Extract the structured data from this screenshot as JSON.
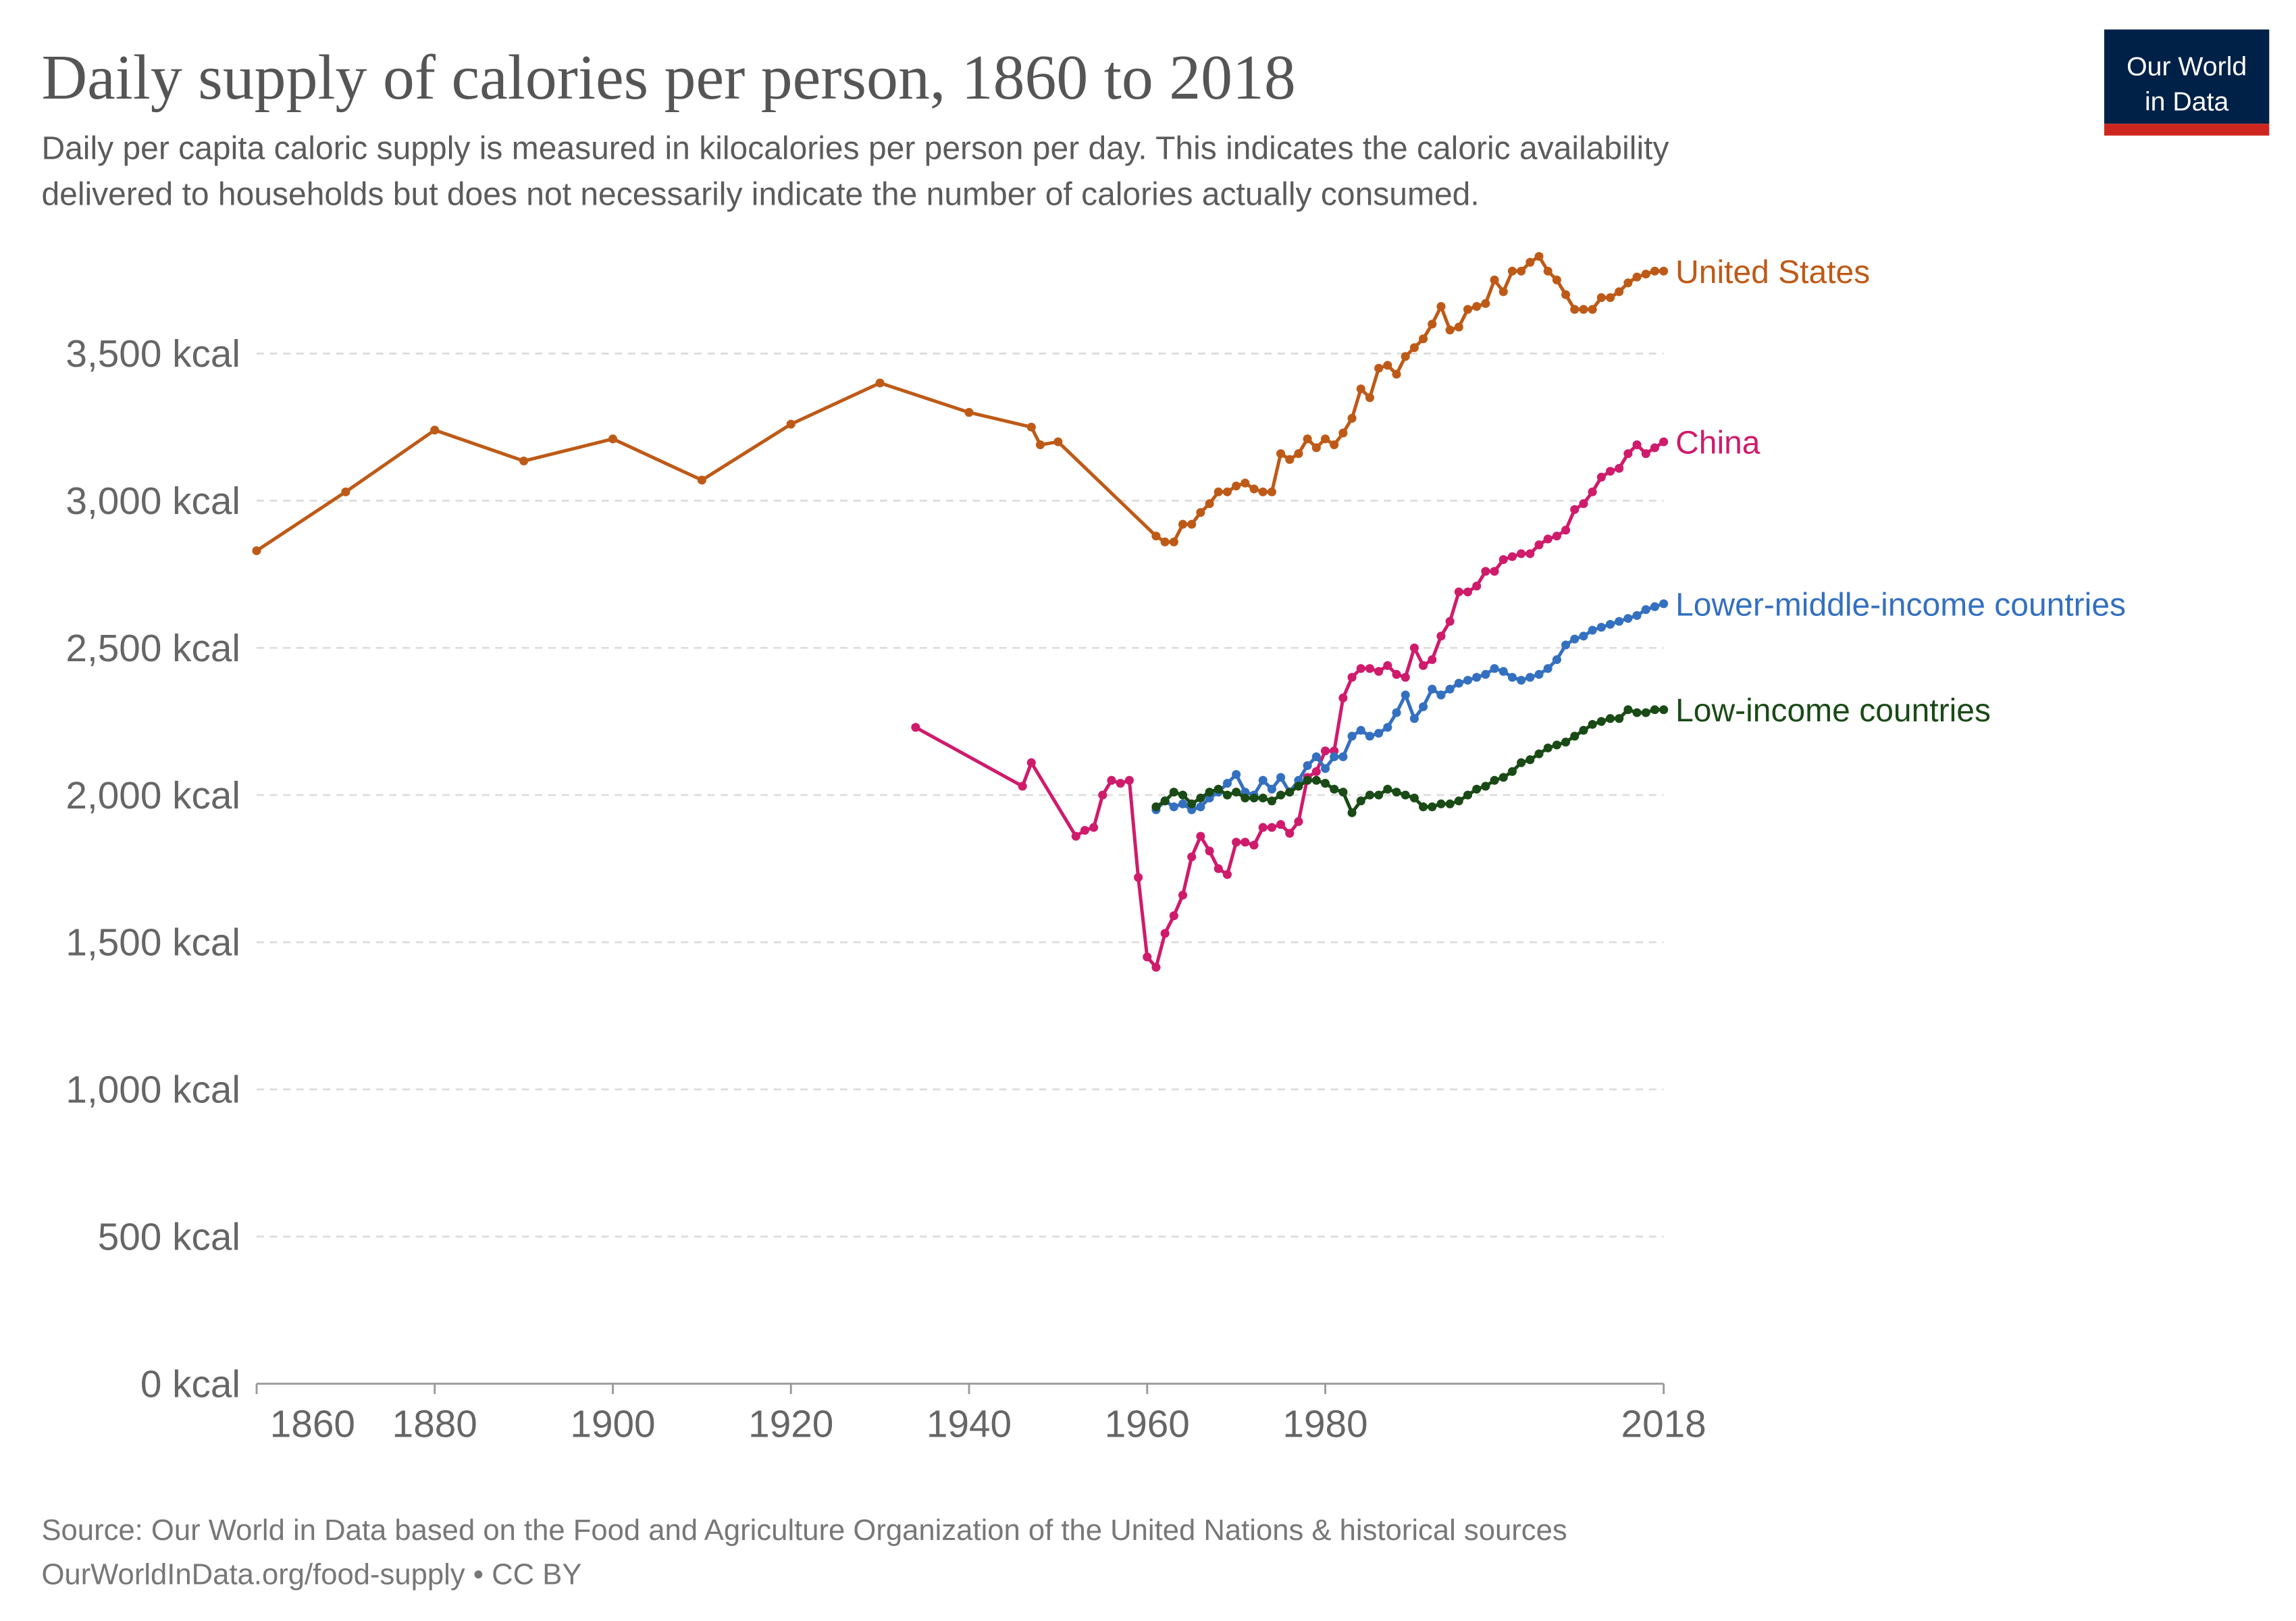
{
  "logo": [
    "Our World",
    "in Data"
  ],
  "chart_data": {
    "type": "line",
    "title": "Daily supply of calories per person, 1860 to 2018",
    "subtitle": [
      "Daily per capita caloric supply is measured in kilocalories per person per day. This indicates the caloric availability",
      "delivered to households but does not necessarily indicate the number of calories actually consumed."
    ],
    "source": "Source: Our World in Data based on the Food and Agriculture Organization of the United Nations & historical sources",
    "url": "OurWorldInData.org/food-supply • CC BY",
    "xlim": [
      1860,
      2018
    ],
    "xticks": [
      1860,
      1880,
      1900,
      1920,
      1940,
      1960,
      1980,
      2018
    ],
    "ylim": [
      0,
      3850
    ],
    "yticks": [
      {
        "value": 0,
        "label": "0 kcal"
      },
      {
        "value": 500,
        "label": "500 kcal"
      },
      {
        "value": 1000,
        "label": "1,000 kcal"
      },
      {
        "value": 1500,
        "label": "1,500 kcal"
      },
      {
        "value": 2000,
        "label": "2,000 kcal"
      },
      {
        "value": 2500,
        "label": "2,500 kcal"
      },
      {
        "value": 3000,
        "label": "3,000 kcal"
      },
      {
        "value": 3500,
        "label": "3,500 kcal"
      }
    ],
    "grid": true,
    "series": [
      {
        "name": "United States",
        "color": "#be5a17",
        "x": [
          1860,
          1870,
          1880,
          1890,
          1900,
          1910,
          1920,
          1930,
          1940,
          1947,
          1948,
          1950,
          1961,
          1962,
          1963,
          1964,
          1965,
          1966,
          1967,
          1968,
          1969,
          1970,
          1971,
          1972,
          1973,
          1974,
          1975,
          1976,
          1977,
          1978,
          1979,
          1980,
          1981,
          1982,
          1983,
          1984,
          1985,
          1986,
          1987,
          1988,
          1989,
          1990,
          1991,
          1992,
          1993,
          1994,
          1995,
          1996,
          1997,
          1998,
          1999,
          2000,
          2001,
          2002,
          2003,
          2004,
          2005,
          2006,
          2007,
          2008,
          2009,
          2010,
          2011,
          2012,
          2013,
          2014,
          2015,
          2016,
          2017,
          2018
        ],
        "values": [
          2830,
          3030,
          3240,
          3135,
          3210,
          3070,
          3260,
          3400,
          3300,
          3250,
          3190,
          3200,
          2880,
          2860,
          2860,
          2920,
          2920,
          2960,
          2990,
          3030,
          3030,
          3050,
          3060,
          3040,
          3030,
          3030,
          3160,
          3140,
          3160,
          3210,
          3180,
          3210,
          3190,
          3230,
          3280,
          3380,
          3350,
          3450,
          3460,
          3430,
          3490,
          3520,
          3550,
          3600,
          3660,
          3580,
          3590,
          3650,
          3660,
          3670,
          3750,
          3710,
          3780,
          3780,
          3810,
          3830,
          3780,
          3750,
          3700,
          3650,
          3650,
          3650,
          3690,
          3690,
          3710,
          3740,
          3760,
          3770,
          3780,
          3780
        ]
      },
      {
        "name": "China",
        "color": "#cf1b6c",
        "x": [
          1934,
          1946,
          1947,
          1952,
          1953,
          1954,
          1955,
          1956,
          1957,
          1958,
          1959,
          1960,
          1961,
          1962,
          1963,
          1964,
          1965,
          1966,
          1967,
          1968,
          1969,
          1970,
          1971,
          1972,
          1973,
          1974,
          1975,
          1976,
          1977,
          1978,
          1979,
          1980,
          1981,
          1982,
          1983,
          1984,
          1985,
          1986,
          1987,
          1988,
          1989,
          1990,
          1991,
          1992,
          1993,
          1994,
          1995,
          1996,
          1997,
          1998,
          1999,
          2000,
          2001,
          2002,
          2003,
          2004,
          2005,
          2006,
          2007,
          2008,
          2009,
          2010,
          2011,
          2012,
          2013,
          2014,
          2015,
          2016,
          2017,
          2018
        ],
        "values": [
          2230,
          2030,
          2110,
          1860,
          1880,
          1890,
          2000,
          2050,
          2040,
          2050,
          1720,
          1450,
          1415,
          1530,
          1590,
          1660,
          1790,
          1860,
          1810,
          1750,
          1730,
          1840,
          1840,
          1830,
          1890,
          1890,
          1900,
          1870,
          1910,
          2060,
          2080,
          2150,
          2150,
          2330,
          2400,
          2430,
          2430,
          2420,
          2440,
          2410,
          2400,
          2500,
          2440,
          2460,
          2540,
          2590,
          2690,
          2690,
          2710,
          2760,
          2760,
          2800,
          2810,
          2820,
          2820,
          2850,
          2870,
          2880,
          2900,
          2970,
          2990,
          3030,
          3080,
          3100,
          3110,
          3160,
          3190,
          3160,
          3180,
          3200
        ]
      },
      {
        "name": "Lower-middle-income countries",
        "color": "#3470c0",
        "x": [
          1961,
          1962,
          1963,
          1964,
          1965,
          1966,
          1967,
          1968,
          1969,
          1970,
          1971,
          1972,
          1973,
          1974,
          1975,
          1976,
          1977,
          1978,
          1979,
          1980,
          1981,
          1982,
          1983,
          1984,
          1985,
          1986,
          1987,
          1988,
          1989,
          1990,
          1991,
          1992,
          1993,
          1994,
          1995,
          1996,
          1997,
          1998,
          1999,
          2000,
          2001,
          2002,
          2003,
          2004,
          2005,
          2006,
          2007,
          2008,
          2009,
          2010,
          2011,
          2012,
          2013,
          2014,
          2015,
          2016,
          2017,
          2018
        ],
        "values": [
          1950,
          1980,
          1960,
          1970,
          1950,
          1960,
          1990,
          2010,
          2040,
          2070,
          2010,
          2000,
          2050,
          2020,
          2060,
          2010,
          2050,
          2100,
          2130,
          2090,
          2130,
          2130,
          2200,
          2220,
          2200,
          2210,
          2230,
          2280,
          2340,
          2260,
          2300,
          2360,
          2340,
          2360,
          2380,
          2390,
          2400,
          2410,
          2430,
          2420,
          2400,
          2390,
          2400,
          2410,
          2430,
          2460,
          2510,
          2530,
          2540,
          2560,
          2570,
          2580,
          2590,
          2600,
          2610,
          2630,
          2640,
          2650
        ]
      },
      {
        "name": "Low-income countries",
        "color": "#1a4a16",
        "x": [
          1961,
          1962,
          1963,
          1964,
          1965,
          1966,
          1967,
          1968,
          1969,
          1970,
          1971,
          1972,
          1973,
          1974,
          1975,
          1976,
          1977,
          1978,
          1979,
          1980,
          1981,
          1982,
          1983,
          1984,
          1985,
          1986,
          1987,
          1988,
          1989,
          1990,
          1991,
          1992,
          1993,
          1994,
          1995,
          1996,
          1997,
          1998,
          1999,
          2000,
          2001,
          2002,
          2003,
          2004,
          2005,
          2006,
          2007,
          2008,
          2009,
          2010,
          2011,
          2012,
          2013,
          2014,
          2015,
          2016,
          2017,
          2018
        ],
        "values": [
          1960,
          1980,
          2010,
          2000,
          1970,
          1990,
          2010,
          2020,
          2000,
          2010,
          1990,
          1990,
          1990,
          1980,
          2000,
          2010,
          2030,
          2050,
          2050,
          2040,
          2020,
          2010,
          1940,
          1980,
          2000,
          2000,
          2020,
          2010,
          2000,
          1990,
          1960,
          1960,
          1970,
          1970,
          1980,
          2000,
          2020,
          2030,
          2050,
          2060,
          2080,
          2110,
          2120,
          2140,
          2160,
          2170,
          2180,
          2200,
          2220,
          2240,
          2250,
          2260,
          2260,
          2290,
          2280,
          2280,
          2290,
          2290
        ]
      }
    ]
  }
}
